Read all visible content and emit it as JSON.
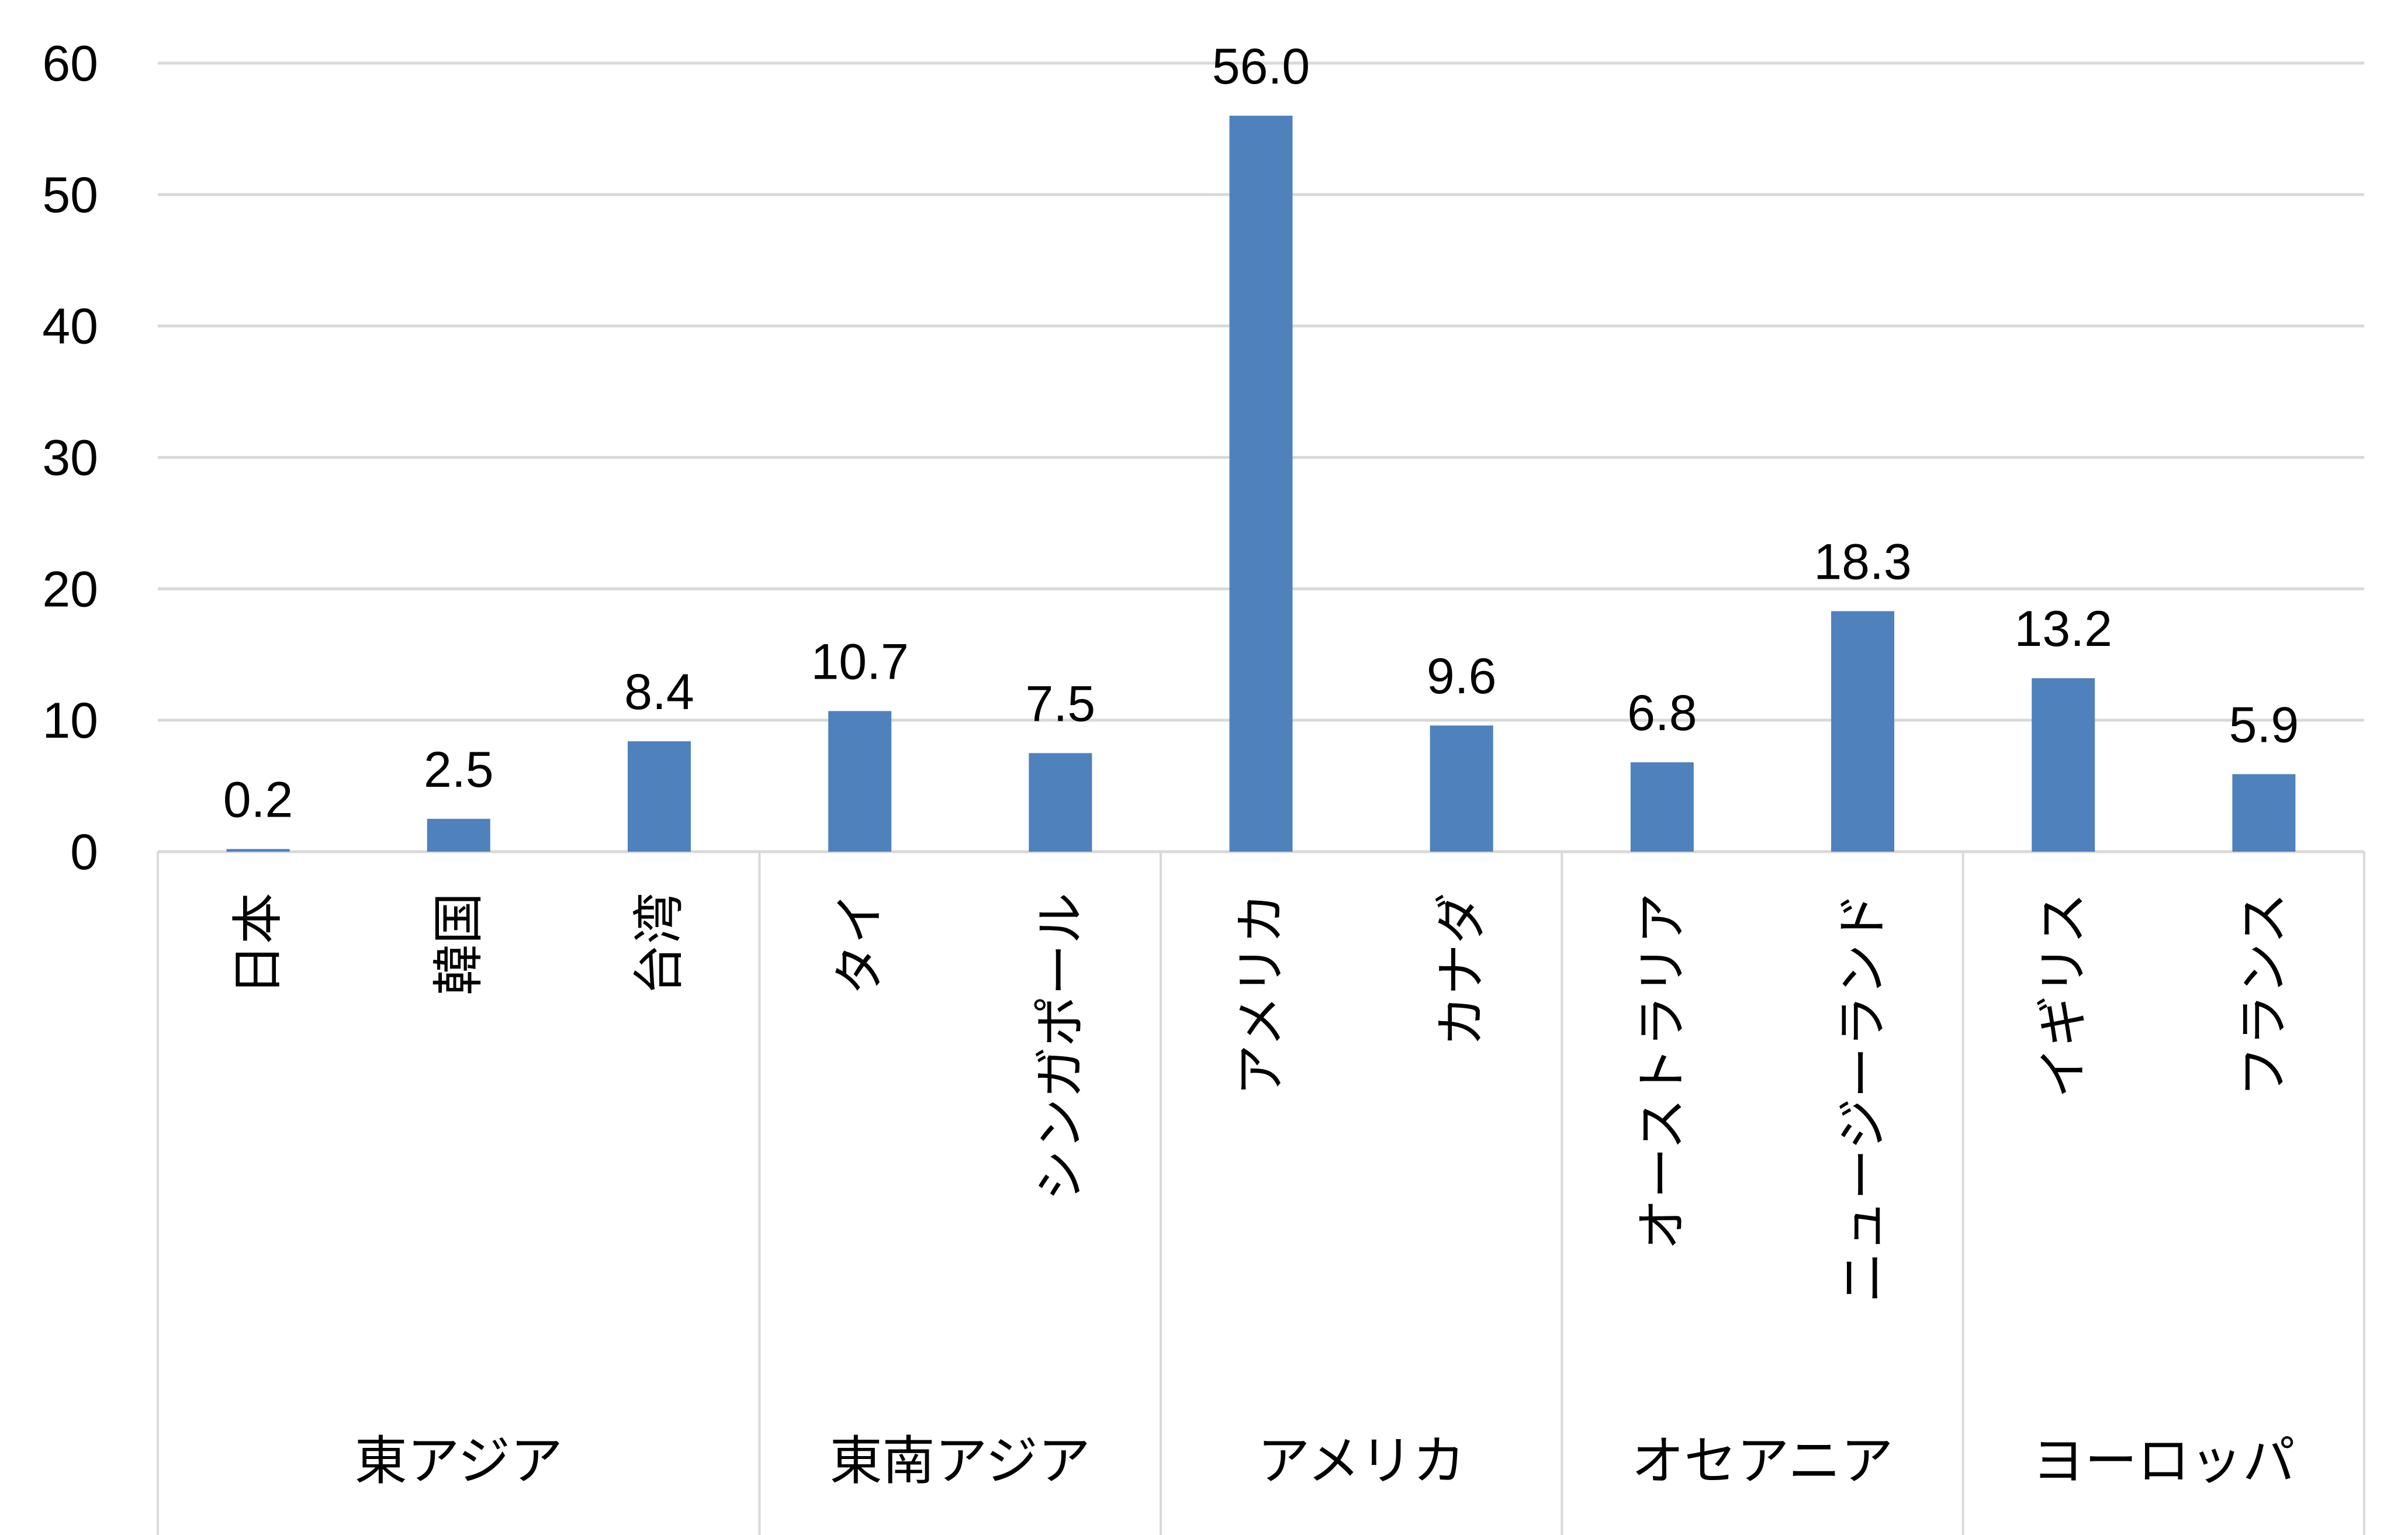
{
  "chart_data": {
    "type": "bar",
    "categories": [
      "日本",
      "韓国",
      "台湾",
      "タイ",
      "シンガポール",
      "アメリカ",
      "カナダ",
      "オーストラリア",
      "ニュージーランド",
      "イギリス",
      "フランス"
    ],
    "groups": [
      {
        "label": "東アジア",
        "span": 3
      },
      {
        "label": "東南アジア",
        "span": 2
      },
      {
        "label": "アメリカ",
        "span": 2
      },
      {
        "label": "オセアニア",
        "span": 2
      },
      {
        "label": "ヨーロッパ",
        "span": 2
      }
    ],
    "values": [
      0.2,
      2.5,
      8.4,
      10.7,
      7.5,
      56.0,
      9.6,
      6.8,
      18.3,
      13.2,
      5.9
    ],
    "value_labels": [
      "0.2",
      "2.5",
      "8.4",
      "10.7",
      "7.5",
      "56.0",
      "9.6",
      "6.8",
      "18.3",
      "13.2",
      "5.9"
    ],
    "yticks": [
      "0",
      "10",
      "20",
      "30",
      "40",
      "50",
      "60"
    ],
    "ylim": [
      0,
      60
    ],
    "grid": true,
    "legend": false,
    "bar_color": "#4f81bd",
    "gridline_color": "#d9d9d9"
  }
}
